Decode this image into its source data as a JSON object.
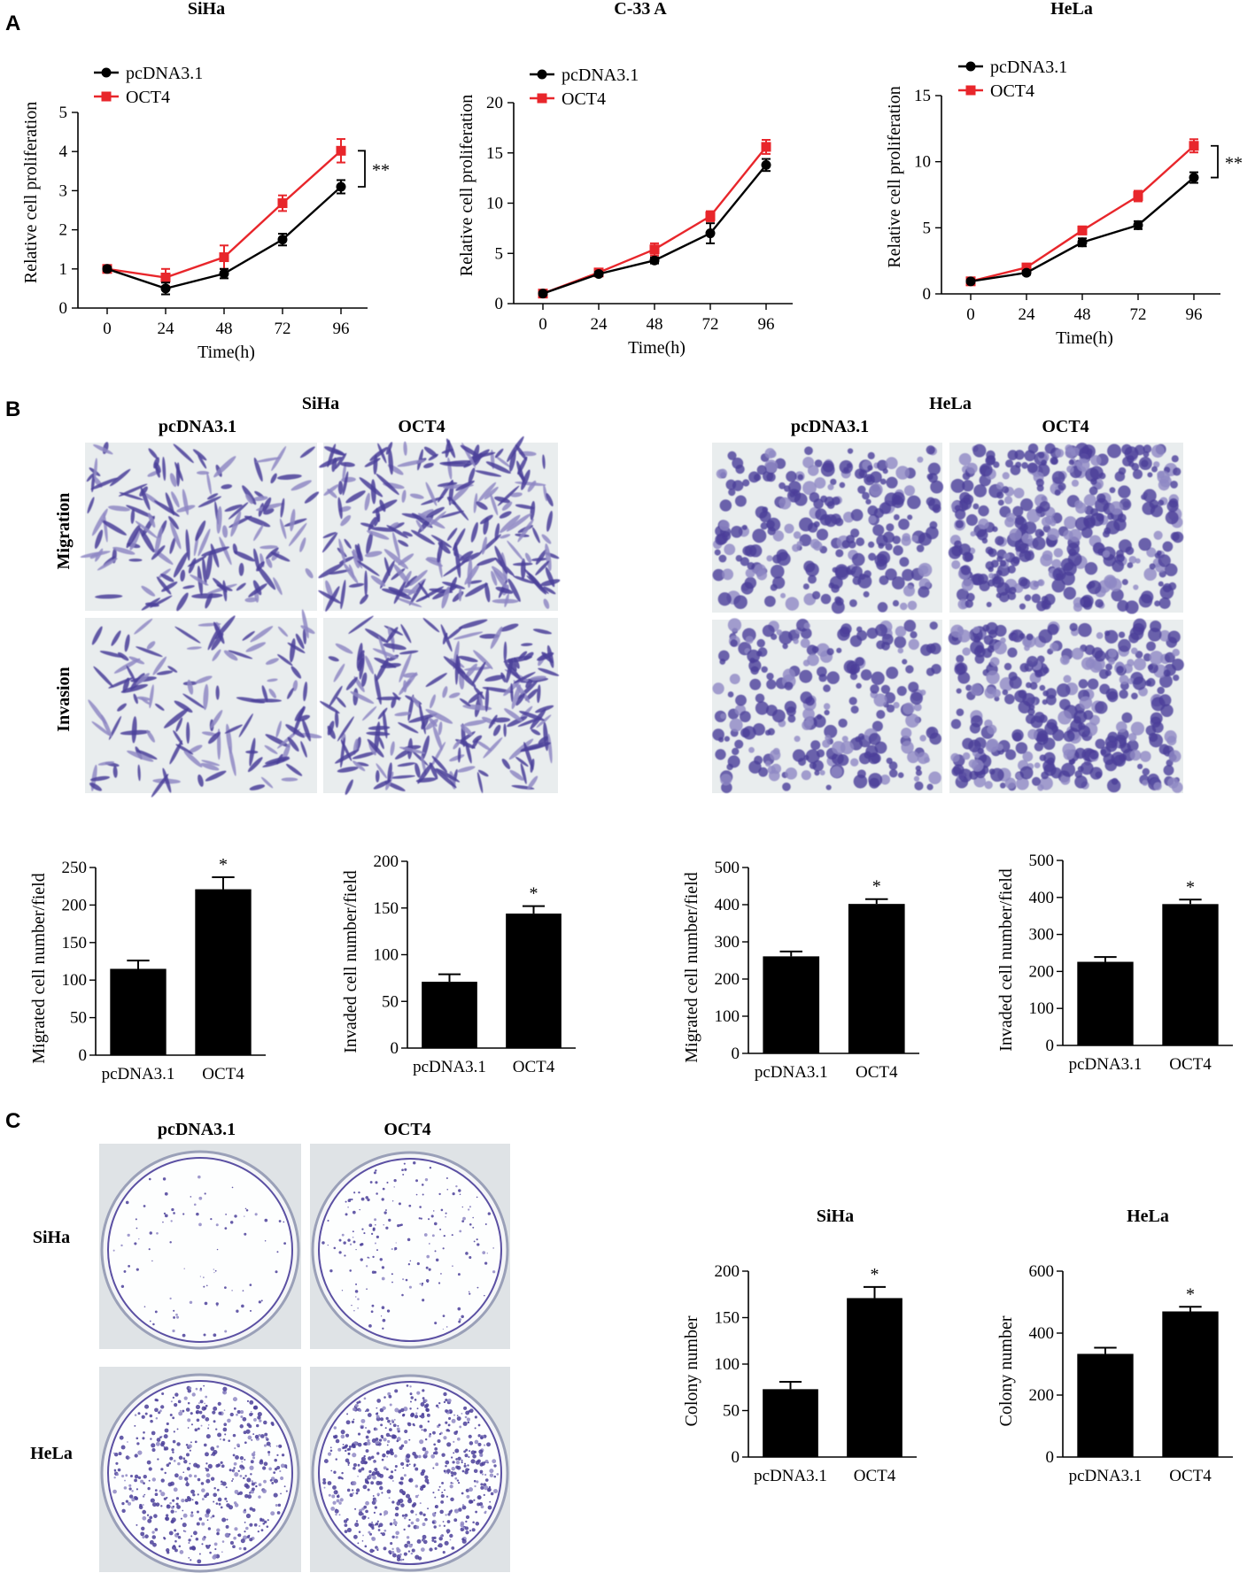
{
  "panels": {
    "a": {
      "letter": "A"
    },
    "b": {
      "letter": "B"
    },
    "c": {
      "letter": "C"
    }
  },
  "colors": {
    "pcdna": "#000000",
    "oct4": "#e8262b",
    "bar": "#000000",
    "stain": "#4b3f9a",
    "stain_light": "#8f88c4",
    "membrane": "#e9edee",
    "dish_bg": "#dfe3e6"
  },
  "chart_data": [
    {
      "id": "prolif-siha",
      "type": "line",
      "title": "SiHa",
      "xlabel": "Time(h)",
      "ylabel": "Relative cell proliferation",
      "x": [
        0,
        24,
        48,
        72,
        96
      ],
      "ylim": [
        0,
        5
      ],
      "yticks": [
        0,
        1,
        2,
        3,
        4,
        5
      ],
      "series": [
        {
          "name": "pcDNA3.1",
          "color": "#000000",
          "values": [
            1.0,
            0.5,
            0.88,
            1.75,
            3.1
          ],
          "err": [
            0.05,
            0.15,
            0.12,
            0.15,
            0.17
          ]
        },
        {
          "name": "OCT4",
          "color": "#e8262b",
          "values": [
            1.0,
            0.78,
            1.3,
            2.68,
            4.02
          ],
          "err": [
            0.05,
            0.22,
            0.3,
            0.2,
            0.3
          ]
        }
      ],
      "significance": "**"
    },
    {
      "id": "prolif-c33a",
      "type": "line",
      "title": "C-33 A",
      "xlabel": "Time(h)",
      "ylabel": "Relative cell proliferation",
      "x": [
        0,
        24,
        48,
        72,
        96
      ],
      "ylim": [
        0,
        20
      ],
      "yticks": [
        0,
        5,
        10,
        15,
        20
      ],
      "series": [
        {
          "name": "pcDNA3.1",
          "color": "#000000",
          "values": [
            1.0,
            2.95,
            4.3,
            7.0,
            13.8
          ],
          "err": [
            0.1,
            0.2,
            0.3,
            1.0,
            0.6
          ]
        },
        {
          "name": "OCT4",
          "color": "#e8262b",
          "values": [
            1.0,
            3.1,
            5.4,
            8.7,
            15.6
          ],
          "err": [
            0.1,
            0.3,
            0.6,
            0.5,
            0.7
          ]
        }
      ],
      "significance": ""
    },
    {
      "id": "prolif-hela",
      "type": "line",
      "title": "HeLa",
      "xlabel": "Time(h)",
      "ylabel": "Relative cell proliferation",
      "x": [
        0,
        24,
        48,
        72,
        96
      ],
      "ylim": [
        0,
        15
      ],
      "yticks": [
        0,
        5,
        10,
        15
      ],
      "series": [
        {
          "name": "pcDNA3.1",
          "color": "#000000",
          "values": [
            0.95,
            1.6,
            3.9,
            5.2,
            8.8
          ],
          "err": [
            0.1,
            0.15,
            0.3,
            0.3,
            0.4
          ]
        },
        {
          "name": "OCT4",
          "color": "#e8262b",
          "values": [
            0.95,
            2.0,
            4.8,
            7.4,
            11.2
          ],
          "err": [
            0.1,
            0.15,
            0.3,
            0.4,
            0.5
          ]
        }
      ],
      "significance": "**"
    },
    {
      "id": "siha-migrated",
      "type": "bar",
      "ylabel": "Migrated cell number/field",
      "categories": [
        "pcDNA3.1",
        "OCT4"
      ],
      "values": [
        115,
        221
      ],
      "err": [
        11,
        16
      ],
      "ylim": [
        0,
        250
      ],
      "yticks": [
        0,
        50,
        100,
        150,
        200,
        250
      ],
      "significance": "*"
    },
    {
      "id": "siha-invaded",
      "type": "bar",
      "ylabel": "Invaded cell number/field",
      "categories": [
        "pcDNA3.1",
        "OCT4"
      ],
      "values": [
        71,
        144
      ],
      "err": [
        8,
        8
      ],
      "ylim": [
        0,
        200
      ],
      "yticks": [
        0,
        50,
        100,
        150,
        200
      ],
      "significance": "*"
    },
    {
      "id": "hela-migrated",
      "type": "bar",
      "ylabel": "Migrated cell number/field",
      "categories": [
        "pcDNA3.1",
        "OCT4"
      ],
      "values": [
        261,
        402
      ],
      "err": [
        13,
        13
      ],
      "ylim": [
        0,
        500
      ],
      "yticks": [
        0,
        100,
        200,
        300,
        400,
        500
      ],
      "significance": "*"
    },
    {
      "id": "hela-invaded",
      "type": "bar",
      "ylabel": "Invaded cell number/field",
      "categories": [
        "pcDNA3.1",
        "OCT4"
      ],
      "values": [
        226,
        382
      ],
      "err": [
        13,
        12
      ],
      "ylim": [
        0,
        500
      ],
      "yticks": [
        0,
        100,
        200,
        300,
        400,
        500
      ],
      "significance": "*"
    },
    {
      "id": "siha-colony",
      "type": "bar",
      "title": "SiHa",
      "ylabel": "Colony number",
      "categories": [
        "pcDNA3.1",
        "OCT4"
      ],
      "values": [
        73,
        171
      ],
      "err": [
        8,
        12
      ],
      "ylim": [
        0,
        200
      ],
      "yticks": [
        0,
        50,
        100,
        150,
        200
      ],
      "significance": "*"
    },
    {
      "id": "hela-colony",
      "type": "bar",
      "title": "HeLa",
      "ylabel": "Colony number",
      "categories": [
        "pcDNA3.1",
        "OCT4"
      ],
      "values": [
        333,
        470
      ],
      "err": [
        20,
        15
      ],
      "ylim": [
        0,
        600
      ],
      "yticks": [
        0,
        200,
        400,
        600
      ],
      "significance": "*"
    }
  ],
  "transwell": {
    "siha": {
      "title": "SiHa",
      "col_labels": [
        "pcDNA3.1",
        "OCT4"
      ],
      "row_labels": [
        "Migration",
        "Invasion"
      ]
    },
    "hela": {
      "title": "HeLa",
      "col_labels": [
        "pcDNA3.1",
        "OCT4"
      ]
    }
  },
  "colony": {
    "col_labels": [
      "pcDNA3.1",
      "OCT4"
    ],
    "row_labels": [
      "SiHa",
      "HeLa"
    ]
  }
}
